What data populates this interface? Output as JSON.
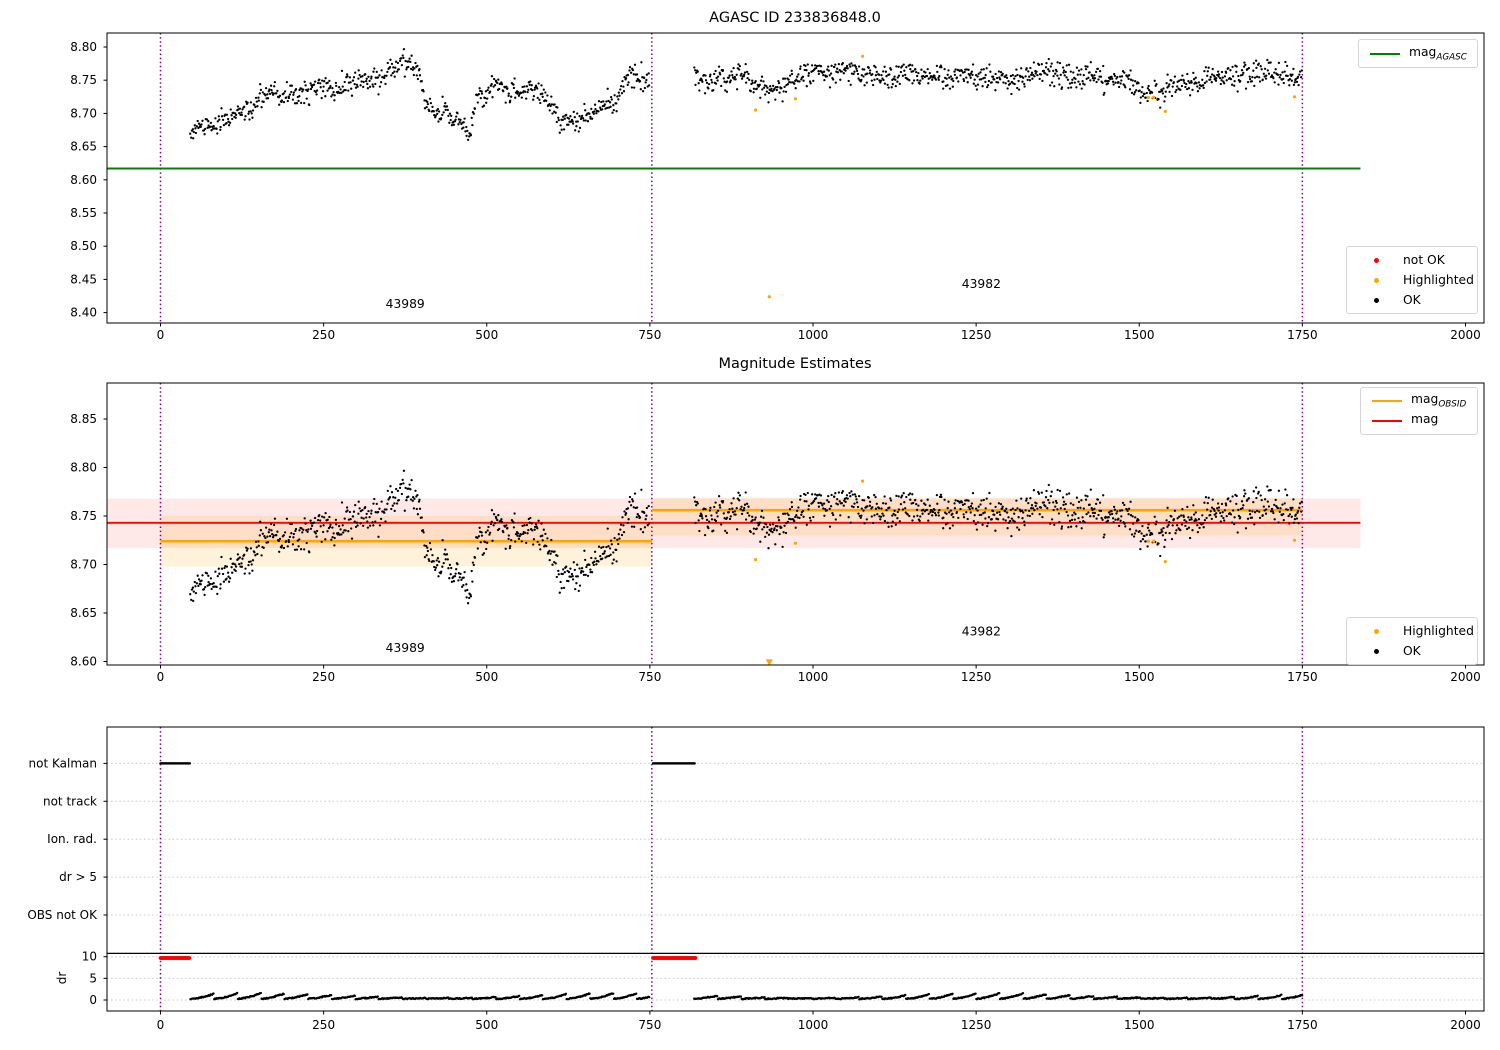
{
  "colors": {
    "ok": "#000000",
    "highlighted": "#ffa500",
    "not_ok": "#ff0000",
    "mag_agasc": "#008000",
    "mag_obsid": "#ffa500",
    "mag": "#ff0000",
    "divider": "#800080",
    "grid": "#c8c8c8",
    "band_red": "#ff0000",
    "band_orange": "#ffa500",
    "spine": "#000000"
  },
  "plot1": {
    "title": "AGASC ID 233836848.0",
    "legend_line": {
      "base": "mag",
      "sub": "AGASC"
    },
    "legend_markers": [
      {
        "label": "not OK",
        "color": "#ff0000"
      },
      {
        "label": "Highlighted",
        "color": "#ffa500"
      },
      {
        "label": "OK",
        "color": "#000000"
      }
    ]
  },
  "plot2": {
    "title": "Magnitude Estimates",
    "legend_lines": [
      {
        "base": "mag",
        "sub": "OBSID",
        "color": "#ffa500"
      },
      {
        "base": "mag",
        "sub": "",
        "color": "#ff0000"
      }
    ],
    "legend_markers": [
      {
        "label": "Highlighted",
        "color": "#ffa500"
      },
      {
        "label": "OK",
        "color": "#000000"
      }
    ]
  },
  "chart_data": [
    {
      "type": "scatter",
      "title": "AGASC ID 233836848.0",
      "xlim": [
        -82,
        2028
      ],
      "ylim": [
        8.384,
        8.821
      ],
      "xticks": [
        0,
        250,
        500,
        750,
        1000,
        1250,
        1500,
        1750,
        2000
      ],
      "yticks": [
        8.4,
        8.45,
        8.5,
        8.55,
        8.6,
        8.65,
        8.7,
        8.75,
        8.8
      ],
      "mag_agasc": 8.617,
      "hline_span": [
        -82,
        1839
      ],
      "obsid_dividers": [
        0,
        753,
        1750
      ],
      "ok_segments": [
        {
          "obsid": "43989",
          "x_start": 46,
          "x_end": 750,
          "anchors": [
            [
              46,
              8.676
            ],
            [
              55,
              8.681
            ],
            [
              65,
              8.678
            ],
            [
              75,
              8.685
            ],
            [
              85,
              8.683
            ],
            [
              95,
              8.689
            ],
            [
              105,
              8.692
            ],
            [
              115,
              8.698
            ],
            [
              125,
              8.703
            ],
            [
              135,
              8.705
            ],
            [
              145,
              8.712
            ],
            [
              152,
              8.722
            ],
            [
              160,
              8.727
            ],
            [
              168,
              8.733
            ],
            [
              175,
              8.73
            ],
            [
              185,
              8.727
            ],
            [
              195,
              8.731
            ],
            [
              205,
              8.726
            ],
            [
              215,
              8.729
            ],
            [
              225,
              8.733
            ],
            [
              235,
              8.731
            ],
            [
              245,
              8.737
            ],
            [
              255,
              8.741
            ],
            [
              265,
              8.735
            ],
            [
              275,
              8.743
            ],
            [
              285,
              8.748
            ],
            [
              295,
              8.745
            ],
            [
              305,
              8.75
            ],
            [
              315,
              8.753
            ],
            [
              325,
              8.755
            ],
            [
              335,
              8.75
            ],
            [
              345,
              8.758
            ],
            [
              355,
              8.765
            ],
            [
              365,
              8.772
            ],
            [
              372,
              8.776
            ],
            [
              378,
              8.766
            ],
            [
              385,
              8.772
            ],
            [
              392,
              8.763
            ],
            [
              398,
              8.752
            ],
            [
              403,
              8.722
            ],
            [
              410,
              8.712
            ],
            [
              418,
              8.705
            ],
            [
              425,
              8.697
            ],
            [
              432,
              8.702
            ],
            [
              438,
              8.712
            ],
            [
              443,
              8.686
            ],
            [
              450,
              8.692
            ],
            [
              457,
              8.7
            ],
            [
              463,
              8.683
            ],
            [
              470,
              8.674
            ],
            [
              477,
              8.678
            ],
            [
              483,
              8.722
            ],
            [
              490,
              8.73
            ],
            [
              497,
              8.723
            ],
            [
              505,
              8.74
            ],
            [
              512,
              8.742
            ],
            [
              520,
              8.748
            ],
            [
              527,
              8.74
            ],
            [
              535,
              8.729
            ],
            [
              542,
              8.733
            ],
            [
              550,
              8.726
            ],
            [
              558,
              8.733
            ],
            [
              565,
              8.737
            ],
            [
              572,
              8.739
            ],
            [
              580,
              8.734
            ],
            [
              588,
              8.726
            ],
            [
              595,
              8.72
            ],
            [
              602,
              8.712
            ],
            [
              608,
              8.699
            ],
            [
              615,
              8.688
            ],
            [
              622,
              8.683
            ],
            [
              628,
              8.691
            ],
            [
              635,
              8.688
            ],
            [
              642,
              8.684
            ],
            [
              648,
              8.698
            ],
            [
              655,
              8.695
            ],
            [
              662,
              8.702
            ],
            [
              668,
              8.71
            ],
            [
              675,
              8.713
            ],
            [
              682,
              8.717
            ],
            [
              688,
              8.721
            ],
            [
              695,
              8.713
            ],
            [
              702,
              8.72
            ],
            [
              708,
              8.73
            ],
            [
              714,
              8.748
            ],
            [
              720,
              8.757
            ],
            [
              726,
              8.753
            ],
            [
              732,
              8.749
            ],
            [
              738,
              8.758
            ],
            [
              744,
              8.749
            ],
            [
              750,
              8.748
            ]
          ]
        },
        {
          "obsid": "43982",
          "x_start": 818,
          "x_end": 1750,
          "anchors": [
            [
              818,
              8.757
            ],
            [
              825,
              8.752
            ],
            [
              832,
              8.748
            ],
            [
              840,
              8.744
            ],
            [
              848,
              8.75
            ],
            [
              856,
              8.755
            ],
            [
              865,
              8.752
            ],
            [
              875,
              8.756
            ],
            [
              885,
              8.759
            ],
            [
              895,
              8.752
            ],
            [
              905,
              8.746
            ],
            [
              915,
              8.742
            ],
            [
              925,
              8.738
            ],
            [
              935,
              8.737
            ],
            [
              945,
              8.743
            ],
            [
              955,
              8.739
            ],
            [
              965,
              8.748
            ],
            [
              975,
              8.752
            ],
            [
              985,
              8.757
            ],
            [
              995,
              8.763
            ],
            [
              1005,
              8.767
            ],
            [
              1015,
              8.764
            ],
            [
              1025,
              8.76
            ],
            [
              1035,
              8.764
            ],
            [
              1045,
              8.768
            ],
            [
              1055,
              8.765
            ],
            [
              1070,
              8.763
            ],
            [
              1085,
              8.76
            ],
            [
              1100,
              8.758
            ],
            [
              1115,
              8.755
            ],
            [
              1130,
              8.759
            ],
            [
              1145,
              8.763
            ],
            [
              1160,
              8.759
            ],
            [
              1175,
              8.755
            ],
            [
              1190,
              8.758
            ],
            [
              1205,
              8.753
            ],
            [
              1220,
              8.758
            ],
            [
              1235,
              8.762
            ],
            [
              1250,
              8.758
            ],
            [
              1265,
              8.754
            ],
            [
              1280,
              8.752
            ],
            [
              1295,
              8.75
            ],
            [
              1310,
              8.753
            ],
            [
              1325,
              8.757
            ],
            [
              1340,
              8.761
            ],
            [
              1355,
              8.764
            ],
            [
              1370,
              8.759
            ],
            [
              1385,
              8.755
            ],
            [
              1400,
              8.752
            ],
            [
              1415,
              8.757
            ],
            [
              1430,
              8.753
            ],
            [
              1445,
              8.749
            ],
            [
              1460,
              8.746
            ],
            [
              1475,
              8.755
            ],
            [
              1490,
              8.742
            ],
            [
              1500,
              8.733
            ],
            [
              1510,
              8.727
            ],
            [
              1520,
              8.732
            ],
            [
              1530,
              8.728
            ],
            [
              1540,
              8.736
            ],
            [
              1550,
              8.742
            ],
            [
              1560,
              8.738
            ],
            [
              1575,
              8.743
            ],
            [
              1590,
              8.748
            ],
            [
              1605,
              8.751
            ],
            [
              1620,
              8.754
            ],
            [
              1635,
              8.757
            ],
            [
              1650,
              8.754
            ],
            [
              1665,
              8.758
            ],
            [
              1680,
              8.761
            ],
            [
              1695,
              8.764
            ],
            [
              1705,
              8.76
            ],
            [
              1715,
              8.756
            ],
            [
              1725,
              8.759
            ],
            [
              1738,
              8.754
            ],
            [
              1750,
              8.75
            ]
          ]
        }
      ],
      "highlighted_points": [
        [
          912,
          8.705
        ],
        [
          933,
          8.424
        ],
        [
          973,
          8.722
        ],
        [
          1076,
          8.786
        ],
        [
          1514,
          8.724
        ],
        [
          1522,
          8.724
        ],
        [
          1540,
          8.703
        ],
        [
          1738,
          8.725
        ]
      ],
      "annotations": [
        {
          "text": "43989",
          "x": 375,
          "y": 8.407
        },
        {
          "text": "43982",
          "x": 1258,
          "y": 8.437
        }
      ]
    },
    {
      "type": "scatter",
      "title": "Magnitude Estimates",
      "xlim": [
        -82,
        2028
      ],
      "ylim": [
        8.596,
        8.887
      ],
      "xticks": [
        0,
        250,
        500,
        750,
        1000,
        1250,
        1500,
        1750,
        2000
      ],
      "yticks": [
        8.6,
        8.65,
        8.7,
        8.75,
        8.8,
        8.85
      ],
      "mag_line": {
        "value": 8.743,
        "band": [
          8.717,
          8.768
        ],
        "span": [
          -82,
          1839
        ]
      },
      "obsid_mag_lines": [
        {
          "obsid": "43989",
          "x_start": 0,
          "x_end": 753,
          "value": 8.724,
          "band": [
            8.698,
            8.75
          ]
        },
        {
          "obsid": "43982",
          "x_start": 753,
          "x_end": 1750,
          "value": 8.756,
          "band": [
            8.73,
            8.769
          ]
        }
      ],
      "obsid_dividers": [
        0,
        753,
        1750
      ],
      "uses_points_of_plot": 0,
      "clipped_marker": "triangle-down",
      "annotations": [
        {
          "text": "43989",
          "x": 375,
          "y": 8.61
        },
        {
          "text": "43982",
          "x": 1258,
          "y": 8.627
        }
      ]
    },
    {
      "type": "flags",
      "rows": [
        "not Kalman",
        "not track",
        "Ion. rad.",
        "dr > 5",
        "OBS not OK"
      ],
      "dr_axis": {
        "label": "dr",
        "ticks": [
          10,
          5,
          0
        ],
        "clip_value": 9.7
      },
      "xticks": [
        0,
        250,
        500,
        750,
        1000,
        1250,
        1500,
        1750,
        2000
      ],
      "xlim": [
        -82,
        2028
      ],
      "flag_hits": {
        "not Kalman": [
          [
            0,
            45
          ],
          [
            755,
            820
          ]
        ]
      },
      "dr_clipped_segments": [
        [
          0,
          45
        ],
        [
          755,
          820
        ]
      ],
      "dr_trace_segments": [
        [
          46,
          750
        ],
        [
          818,
          1750
        ]
      ],
      "obsid_dividers": [
        0,
        753,
        1750
      ]
    }
  ]
}
